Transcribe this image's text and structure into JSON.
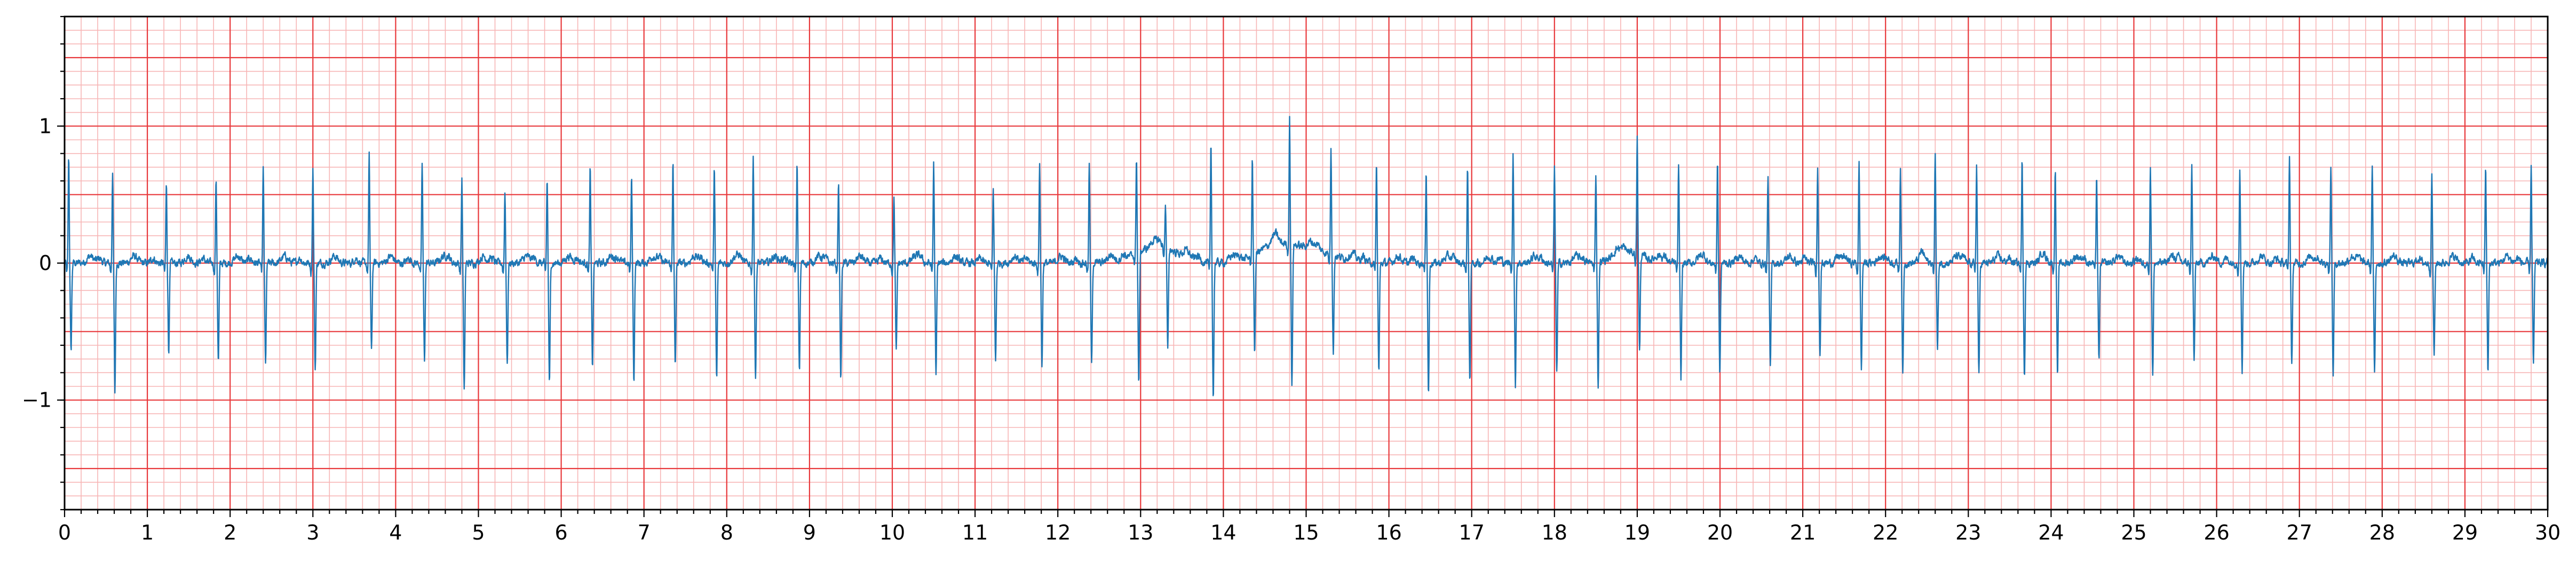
{
  "chart_data": {
    "type": "line",
    "title": "",
    "xlabel": "",
    "ylabel": "",
    "xlim": [
      0,
      30
    ],
    "ylim": [
      -1.8,
      1.8
    ],
    "x_ticks": [
      "0",
      "1",
      "2",
      "3",
      "4",
      "5",
      "6",
      "7",
      "8",
      "9",
      "10",
      "11",
      "12",
      "13",
      "14",
      "15",
      "16",
      "17",
      "18",
      "19",
      "20",
      "21",
      "22",
      "23",
      "24",
      "25",
      "26",
      "27",
      "28",
      "29",
      "30"
    ],
    "y_ticks": [
      {
        "value": 1,
        "label": "1"
      },
      {
        "value": 0,
        "label": "0"
      },
      {
        "value": -1,
        "label": "−1"
      }
    ],
    "grid": {
      "major_x": 1,
      "minor_x": 0.2,
      "major_y": 0.5,
      "minor_y": 0.1,
      "major_color": "#e8383b",
      "minor_color": "#f7b5b5"
    },
    "series": [
      {
        "name": "",
        "color": "#1f77b4",
        "beat_times": [
          0.05,
          0.58,
          1.23,
          1.83,
          2.4,
          3.0,
          3.68,
          4.32,
          4.8,
          5.32,
          5.83,
          6.35,
          6.85,
          7.35,
          7.85,
          8.32,
          8.85,
          9.35,
          10.02,
          10.5,
          11.22,
          11.78,
          12.38,
          12.95,
          13.3,
          13.85,
          14.35,
          14.8,
          15.3,
          15.85,
          16.45,
          16.95,
          17.5,
          18.0,
          18.5,
          19.0,
          19.5,
          19.97,
          20.58,
          21.18,
          21.68,
          22.18,
          22.6,
          23.1,
          23.65,
          24.05,
          24.55,
          25.2,
          25.7,
          26.28,
          26.88,
          27.38,
          27.88,
          28.6,
          29.25,
          29.8
        ],
        "r_peaks": [
          0.78,
          0.67,
          0.58,
          0.61,
          0.68,
          0.7,
          0.78,
          0.73,
          0.62,
          0.52,
          0.62,
          0.7,
          0.63,
          0.76,
          0.72,
          0.77,
          0.72,
          0.6,
          0.5,
          0.73,
          0.55,
          0.75,
          0.73,
          0.72,
          0.3,
          0.88,
          0.72,
          0.92,
          0.8,
          0.72,
          0.7,
          0.7,
          0.8,
          0.7,
          0.65,
          0.87,
          0.72,
          0.75,
          0.65,
          0.72,
          0.72,
          0.7,
          0.8,
          0.72,
          0.75,
          0.7,
          0.65,
          0.7,
          0.7,
          0.7,
          0.8,
          0.72,
          0.72,
          0.65,
          0.7,
          0.73
        ],
        "s_troughs": [
          -0.65,
          -0.95,
          -0.65,
          -0.72,
          -0.75,
          -0.78,
          -0.65,
          -0.72,
          -0.95,
          -0.75,
          -0.88,
          -0.75,
          -0.86,
          -0.75,
          -0.86,
          -0.85,
          -0.78,
          -0.85,
          -0.65,
          -0.84,
          -0.72,
          -0.75,
          -0.75,
          -0.98,
          -0.75,
          -0.98,
          -0.72,
          -1.05,
          -0.72,
          -0.8,
          -0.95,
          -0.85,
          -0.9,
          -0.8,
          -0.92,
          -0.72,
          -0.85,
          -0.82,
          -0.78,
          -0.65,
          -0.78,
          -0.82,
          -0.65,
          -0.82,
          -0.82,
          -0.82,
          -0.72,
          -0.82,
          -0.72,
          -0.78,
          -0.75,
          -0.82,
          -0.82,
          -0.68,
          -0.8,
          -0.75
        ]
      }
    ]
  }
}
